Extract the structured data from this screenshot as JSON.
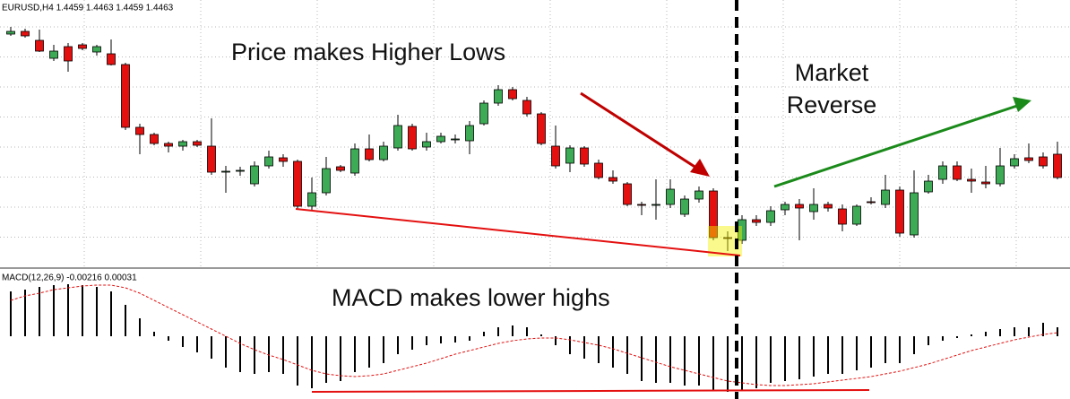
{
  "chart_data": [
    {
      "type": "candlestick",
      "title": "EURUSD,H4  1.4459 1.4463 1.4459 1.4463",
      "annotations": [
        "Price makes Higher Lows",
        "Market",
        "Reverse"
      ],
      "open": [
        1.4662,
        1.4665,
        1.4655,
        1.4635,
        1.4648,
        1.465,
        1.4642,
        1.464,
        1.4628,
        1.4558,
        1.455,
        1.454,
        1.4537,
        1.4542,
        1.4537,
        1.4508,
        1.451,
        1.4495,
        1.4515,
        1.4524,
        1.452,
        1.447,
        1.4485,
        1.4514,
        1.4507,
        1.4534,
        1.4522,
        1.4535,
        1.4559,
        1.4536,
        1.4542,
        1.4544,
        1.4543,
        1.4562,
        1.4585,
        1.46,
        1.4588,
        1.4573,
        1.4537,
        1.4518,
        1.4535,
        1.4518,
        1.4502,
        1.4495,
        1.4472,
        1.4472,
        1.4472,
        1.4461,
        1.4478,
        1.4487,
        1.4435,
        1.4432,
        1.4455,
        1.4452,
        1.4466,
        1.4472,
        1.4464,
        1.4472,
        1.4467,
        1.445,
        1.4475,
        1.4472,
        1.4488,
        1.4438,
        1.4486,
        1.45,
        1.4515,
        1.45,
        1.4497,
        1.4495,
        1.4515,
        1.4524,
        1.4525,
        1.4528
      ],
      "high": [
        1.467,
        1.4668,
        1.4667,
        1.465,
        1.4652,
        1.4652,
        1.465,
        1.4656,
        1.463,
        1.4562,
        1.4552,
        1.4542,
        1.4544,
        1.4544,
        1.4568,
        1.4515,
        1.4514,
        1.452,
        1.4532,
        1.4528,
        1.4522,
        1.4502,
        1.4525,
        1.4516,
        1.454,
        1.455,
        1.4542,
        1.4572,
        1.4562,
        1.4552,
        1.4552,
        1.455,
        1.4565,
        1.4588,
        1.4605,
        1.4603,
        1.4592,
        1.4575,
        1.456,
        1.4538,
        1.4537,
        1.4522,
        1.451,
        1.4497,
        1.4475,
        1.45,
        1.45,
        1.4482,
        1.4492,
        1.449,
        1.4442,
        1.446,
        1.446,
        1.447,
        1.4475,
        1.4478,
        1.449,
        1.4475,
        1.4472,
        1.4472,
        1.448,
        1.4505,
        1.4492,
        1.451,
        1.4505,
        1.452,
        1.452,
        1.4512,
        1.4515,
        1.4535,
        1.4528,
        1.454,
        1.453,
        1.4542
      ],
      "low": [
        1.466,
        1.4658,
        1.4642,
        1.4632,
        1.462,
        1.4644,
        1.4638,
        1.4627,
        1.4555,
        1.4528,
        1.4538,
        1.453,
        1.4532,
        1.4536,
        1.4505,
        1.4485,
        1.4504,
        1.4492,
        1.4512,
        1.4514,
        1.4466,
        1.4465,
        1.4482,
        1.4508,
        1.4504,
        1.452,
        1.452,
        1.4532,
        1.4532,
        1.4532,
        1.454,
        1.454,
        1.4528,
        1.456,
        1.4582,
        1.4588,
        1.457,
        1.4538,
        1.4512,
        1.4508,
        1.4514,
        1.45,
        1.4495,
        1.447,
        1.446,
        1.4455,
        1.4468,
        1.4458,
        1.4474,
        1.4432,
        1.442,
        1.4428,
        1.4448,
        1.4448,
        1.446,
        1.4432,
        1.4455,
        1.4464,
        1.4442,
        1.4448,
        1.4472,
        1.4468,
        1.4436,
        1.4435,
        1.4484,
        1.4495,
        1.4498,
        1.4485,
        1.449,
        1.4492,
        1.4512,
        1.4518,
        1.4512,
        1.45
      ],
      "close": [
        1.4665,
        1.466,
        1.4643,
        1.4643,
        1.4632,
        1.4646,
        1.4648,
        1.4628,
        1.4558,
        1.455,
        1.454,
        1.4537,
        1.4542,
        1.4538,
        1.4508,
        1.4509,
        1.451,
        1.4515,
        1.4525,
        1.452,
        1.447,
        1.4485,
        1.4512,
        1.451,
        1.4534,
        1.4522,
        1.4537,
        1.456,
        1.4534,
        1.4542,
        1.4548,
        1.4545,
        1.456,
        1.4585,
        1.46,
        1.459,
        1.4573,
        1.454,
        1.4515,
        1.4535,
        1.4517,
        1.4502,
        1.4498,
        1.4472,
        1.4471,
        1.4472,
        1.4489,
        1.4478,
        1.4487,
        1.4435,
        1.4434,
        1.4455,
        1.4452,
        1.4465,
        1.4472,
        1.4468,
        1.4472,
        1.4468,
        1.445,
        1.447,
        1.4474,
        1.4488,
        1.444,
        1.4485,
        1.4498,
        1.4515,
        1.45,
        1.4498,
        1.4495,
        1.4515,
        1.4523,
        1.4521,
        1.4515,
        1.4502
      ],
      "up_color": "#3daa55",
      "down_color": "#e41010",
      "ylim": [
        1.44,
        1.47
      ],
      "grid": true
    },
    {
      "type": "macd",
      "title": "MACD(12,26,9) -0.00216 0.00031",
      "annotations": [
        "MACD makes lower highs"
      ],
      "histogram": [
        0.0025,
        0.0026,
        0.00275,
        0.00285,
        0.0029,
        0.00285,
        0.00275,
        0.0025,
        0.00175,
        0.001,
        0.00025,
        -0.00025,
        -0.0006,
        -0.0009,
        -0.00125,
        -0.00175,
        -0.002,
        -0.0021,
        -0.002,
        -0.0021,
        -0.00275,
        -0.0029,
        -0.0026,
        -0.0025,
        -0.002,
        -0.00175,
        -0.0015,
        -0.001,
        -0.00075,
        -0.0005,
        -0.0004,
        -0.00035,
        -0.00025,
        0.00025,
        0.0005,
        0.0006,
        0.0005,
        0.0001,
        -0.0005,
        -0.001,
        -0.00125,
        -0.0015,
        -0.00175,
        -0.0021,
        -0.0025,
        -0.0026,
        -0.0026,
        -0.00275,
        -0.00275,
        -0.003,
        -0.0031,
        -0.003,
        -0.0029,
        -0.0026,
        -0.0025,
        -0.0024,
        -0.00225,
        -0.0021,
        -0.0021,
        -0.0019,
        -0.00175,
        -0.0015,
        -0.0015,
        -0.001,
        -0.0005,
        -0.00025,
        -0.0001,
        0.0001,
        0.00025,
        0.0004,
        0.0005,
        0.0005,
        0.00075,
        0.0005
      ],
      "signal": [
        0.002,
        0.00225,
        0.0024,
        0.0026,
        0.0027,
        0.0028,
        0.00285,
        0.00285,
        0.0027,
        0.0024,
        0.002,
        0.0016,
        0.0012,
        0.0008,
        0.0004,
        0,
        -0.0004,
        -0.00075,
        -0.00105,
        -0.0013,
        -0.0016,
        -0.0019,
        -0.0021,
        -0.0022,
        -0.00225,
        -0.0022,
        -0.0021,
        -0.0019,
        -0.0017,
        -0.0015,
        -0.00125,
        -0.001,
        -0.0008,
        -0.0006,
        -0.0004,
        -0.00025,
        -0.00015,
        -0.0001,
        -0.0001,
        -0.0002,
        -0.00035,
        -0.0005,
        -0.0007,
        -0.00095,
        -0.0012,
        -0.00145,
        -0.0017,
        -0.0019,
        -0.0021,
        -0.0023,
        -0.0025,
        -0.0026,
        -0.0027,
        -0.00275,
        -0.00275,
        -0.0027,
        -0.00265,
        -0.00255,
        -0.00245,
        -0.00235,
        -0.00225,
        -0.0021,
        -0.00195,
        -0.00175,
        -0.00155,
        -0.0013,
        -0.00105,
        -0.0008,
        -0.0006,
        -0.0004,
        -0.0002,
        -5e-05,
        0.0001,
        0.0002
      ],
      "color": "#000000",
      "signal_color": "#e41010",
      "ylim": [
        -0.0035,
        0.00375
      ]
    }
  ]
}
